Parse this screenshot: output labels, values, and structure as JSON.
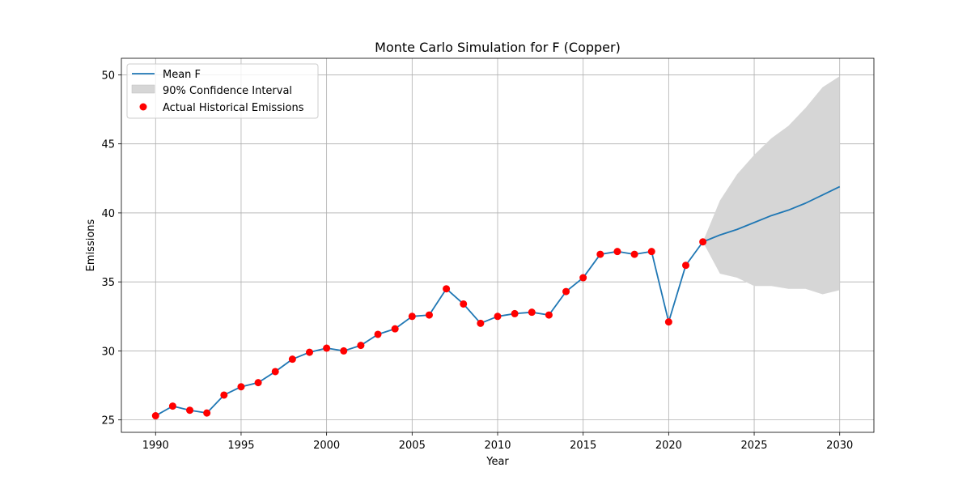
{
  "chart_data": {
    "type": "line",
    "title": "Monte Carlo Simulation for F (Copper)",
    "xlabel": "Year",
    "ylabel": "Emissions",
    "xlim": [
      1988,
      2032
    ],
    "ylim": [
      24.1,
      51.2
    ],
    "xticks": [
      1990,
      1995,
      2000,
      2005,
      2010,
      2015,
      2020,
      2025,
      2030
    ],
    "yticks": [
      25,
      30,
      35,
      40,
      45,
      50
    ],
    "grid": true,
    "legend_position": "top-left",
    "colors": {
      "mean": "#1f77b4",
      "ci_fill": "#d6d6d6",
      "actual": "#ff0000"
    },
    "series": [
      {
        "name": "Mean F",
        "kind": "line",
        "x": [
          1990,
          1991,
          1992,
          1993,
          1994,
          1995,
          1996,
          1997,
          1998,
          1999,
          2000,
          2001,
          2002,
          2003,
          2004,
          2005,
          2006,
          2007,
          2008,
          2009,
          2010,
          2011,
          2012,
          2013,
          2014,
          2015,
          2016,
          2017,
          2018,
          2019,
          2020,
          2021,
          2022,
          2023,
          2024,
          2025,
          2026,
          2027,
          2028,
          2029,
          2030
        ],
        "y": [
          25.3,
          26.0,
          25.7,
          25.5,
          26.8,
          27.4,
          27.7,
          28.5,
          29.4,
          29.9,
          30.2,
          30.0,
          30.4,
          31.2,
          31.6,
          32.5,
          32.6,
          34.5,
          33.4,
          32.0,
          32.5,
          32.7,
          32.8,
          32.6,
          34.3,
          35.3,
          37.0,
          37.2,
          37.0,
          37.2,
          32.1,
          36.2,
          37.9,
          38.4,
          38.8,
          39.3,
          39.8,
          40.2,
          40.7,
          41.3,
          41.9
        ]
      },
      {
        "name": "90% Confidence Interval",
        "kind": "band",
        "x": [
          2022,
          2023,
          2024,
          2025,
          2026,
          2027,
          2028,
          2029,
          2030
        ],
        "lower": [
          37.9,
          35.6,
          35.3,
          34.7,
          34.7,
          34.5,
          34.5,
          34.1,
          34.4
        ],
        "upper": [
          37.9,
          40.9,
          42.8,
          44.2,
          45.4,
          46.3,
          47.6,
          49.1,
          49.9
        ]
      },
      {
        "name": "Actual Historical Emissions",
        "kind": "scatter",
        "x": [
          1990,
          1991,
          1992,
          1993,
          1994,
          1995,
          1996,
          1997,
          1998,
          1999,
          2000,
          2001,
          2002,
          2003,
          2004,
          2005,
          2006,
          2007,
          2008,
          2009,
          2010,
          2011,
          2012,
          2013,
          2014,
          2015,
          2016,
          2017,
          2018,
          2019,
          2020,
          2021,
          2022
        ],
        "y": [
          25.3,
          26.0,
          25.7,
          25.5,
          26.8,
          27.4,
          27.7,
          28.5,
          29.4,
          29.9,
          30.2,
          30.0,
          30.4,
          31.2,
          31.6,
          32.5,
          32.6,
          34.5,
          33.4,
          32.0,
          32.5,
          32.7,
          32.8,
          32.6,
          34.3,
          35.3,
          37.0,
          37.2,
          37.0,
          37.2,
          32.1,
          36.2,
          37.9
        ]
      }
    ]
  }
}
